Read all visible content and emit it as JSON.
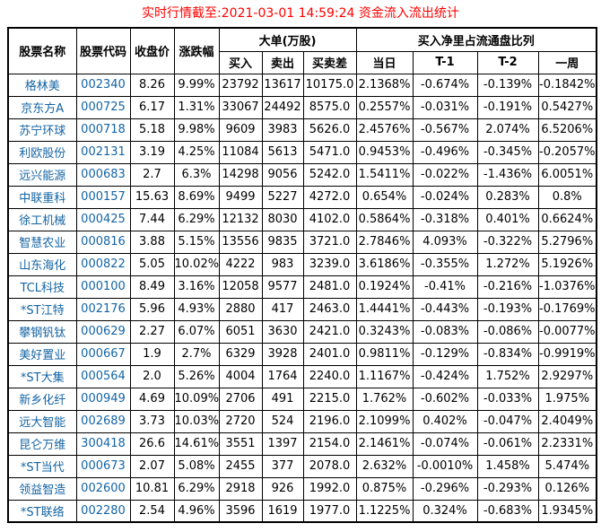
{
  "title": "实时行情截至:2021-03-01 14:59:24 资金流入流出统计",
  "colors": {
    "title_red": "#FF0000",
    "stock_blue": "#1464A4",
    "border": "#000000",
    "background": "#FFFFFF"
  },
  "table": {
    "headers": {
      "stock_name": "股票名称",
      "stock_code": "股票代码",
      "close_price": "收盘价",
      "change_pct": "涨跌幅",
      "big_orders_group": "大单(万股)",
      "buy": "买入",
      "sell": "卖出",
      "buy_sell_diff": "买卖差",
      "net_buy_ratio_group": "买入净里占流通盘比列",
      "today": "当日",
      "t_minus_1": "T-1",
      "t_minus_2": "T-2",
      "week": "一周"
    },
    "rows": [
      [
        "格林美",
        "002340",
        "8.26",
        "9.99%",
        "23792",
        "13617",
        "10175.0",
        "2.1368%",
        "-0.674%",
        "-0.139%",
        "-0.1842%"
      ],
      [
        "京东方A",
        "000725",
        "6.17",
        "1.31%",
        "33067",
        "24492",
        "8575.0",
        "0.2557%",
        "-0.031%",
        "-0.191%",
        "0.5427%"
      ],
      [
        "苏宁环球",
        "000718",
        "5.18",
        "9.98%",
        "9609",
        "3983",
        "5626.0",
        "2.4576%",
        "-0.567%",
        "2.074%",
        "6.5206%"
      ],
      [
        "利欧股份",
        "002131",
        "3.19",
        "4.25%",
        "11084",
        "5613",
        "5471.0",
        "0.9453%",
        "-0.496%",
        "-0.345%",
        "-0.2057%"
      ],
      [
        "远兴能源",
        "000683",
        "2.7",
        "6.3%",
        "14298",
        "9056",
        "5242.0",
        "1.5411%",
        "-0.022%",
        "-1.436%",
        "6.0051%"
      ],
      [
        "中联重科",
        "000157",
        "15.63",
        "8.69%",
        "9499",
        "5227",
        "4272.0",
        "0.654%",
        "-0.024%",
        "0.283%",
        "0.8%"
      ],
      [
        "徐工机械",
        "000425",
        "7.44",
        "6.29%",
        "12132",
        "8030",
        "4102.0",
        "0.5864%",
        "-0.318%",
        "0.401%",
        "0.6624%"
      ],
      [
        "智慧农业",
        "000816",
        "3.88",
        "5.15%",
        "13556",
        "9835",
        "3721.0",
        "2.7846%",
        "4.093%",
        "-0.322%",
        "5.2796%"
      ],
      [
        "山东海化",
        "000822",
        "5.05",
        "10.02%",
        "4222",
        "983",
        "3239.0",
        "3.6186%",
        "-0.355%",
        "1.272%",
        "5.1926%"
      ],
      [
        "TCL科技",
        "000100",
        "8.49",
        "3.16%",
        "12058",
        "9577",
        "2481.0",
        "0.1924%",
        "-0.41%",
        "-0.216%",
        "-1.0376%"
      ],
      [
        "*ST江特",
        "002176",
        "5.96",
        "4.93%",
        "2880",
        "417",
        "2463.0",
        "1.4441%",
        "-0.443%",
        "-0.193%",
        "-0.1769%"
      ],
      [
        "攀钢钒钛",
        "000629",
        "2.27",
        "6.07%",
        "6051",
        "3630",
        "2421.0",
        "0.3243%",
        "-0.083%",
        "-0.086%",
        "-0.0077%"
      ],
      [
        "美好置业",
        "000667",
        "1.9",
        "2.7%",
        "6329",
        "3928",
        "2401.0",
        "0.9811%",
        "-0.129%",
        "-0.834%",
        "-0.9919%"
      ],
      [
        "*ST大集",
        "000564",
        "2.0",
        "5.26%",
        "4004",
        "1764",
        "2240.0",
        "1.1167%",
        "-0.424%",
        "1.752%",
        "2.9297%"
      ],
      [
        "新乡化纤",
        "000949",
        "4.69",
        "10.09%",
        "2706",
        "491",
        "2215.0",
        "1.762%",
        "-0.602%",
        "-0.033%",
        "1.975%"
      ],
      [
        "远大智能",
        "002689",
        "3.73",
        "10.03%",
        "2720",
        "524",
        "2196.0",
        "2.1099%",
        "0.402%",
        "-0.047%",
        "2.4049%"
      ],
      [
        "昆仑万维",
        "300418",
        "26.6",
        "14.61%",
        "3551",
        "1397",
        "2154.0",
        "2.1461%",
        "-0.074%",
        "-0.061%",
        "2.2331%"
      ],
      [
        "*ST当代",
        "000673",
        "2.07",
        "5.08%",
        "2455",
        "377",
        "2078.0",
        "2.632%",
        "-0.0010%",
        "1.458%",
        "5.474%"
      ],
      [
        "领益智造",
        "002600",
        "10.81",
        "6.29%",
        "2918",
        "926",
        "1992.0",
        "0.875%",
        "-0.296%",
        "-0.293%",
        "0.126%"
      ],
      [
        "*ST联络",
        "002280",
        "2.54",
        "4.96%",
        "3596",
        "1619",
        "1977.0",
        "1.1225%",
        "0.324%",
        "-0.683%",
        "1.9345%"
      ]
    ]
  }
}
